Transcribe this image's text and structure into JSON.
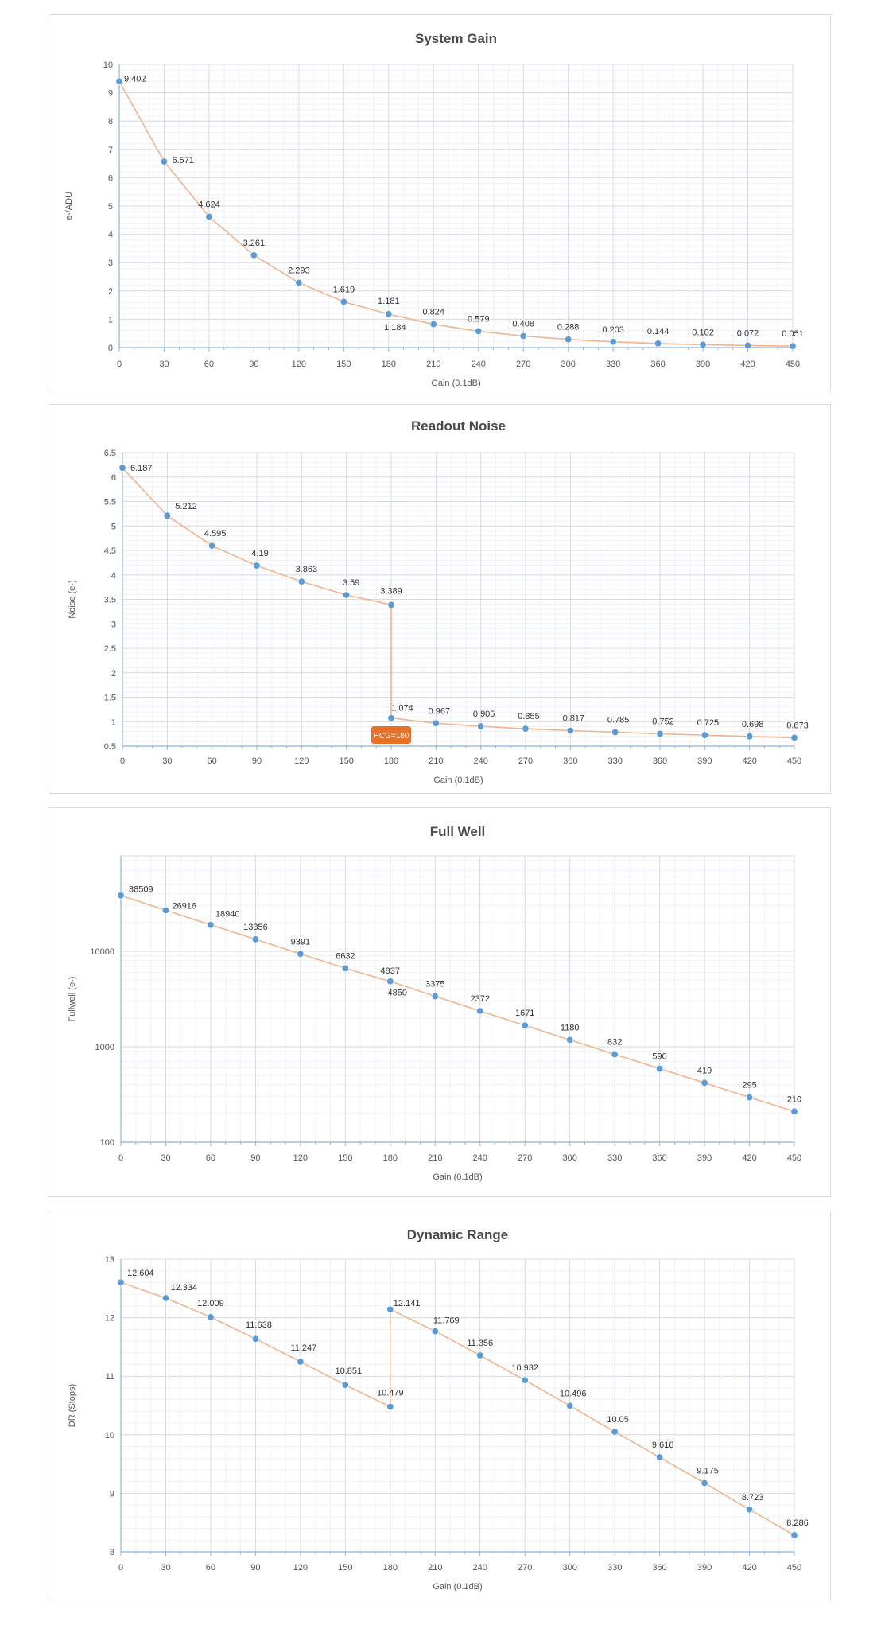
{
  "chart_data": [
    {
      "type": "line",
      "title": "System Gain",
      "xlabel": "Gain (0.1dB)",
      "ylabel": "e-/ADU",
      "x": [
        0,
        30,
        60,
        90,
        120,
        150,
        180,
        180,
        210,
        240,
        270,
        300,
        330,
        360,
        390,
        420,
        450
      ],
      "series": [
        {
          "values": [
            9.402,
            6.571,
            4.624,
            3.261,
            2.293,
            1.619,
            1.181,
            1.184,
            0.824,
            0.579,
            0.408,
            0.288,
            0.203,
            0.144,
            0.102,
            0.072,
            0.051
          ]
        }
      ],
      "labels": [
        "9.402",
        "6.571",
        "4.624",
        "3.261",
        "2.293",
        "1.619",
        "1.181",
        "1.184",
        "0.824",
        "0.579",
        "0.408",
        "0.288",
        "0.203",
        "0.144",
        "0.102",
        "0.072",
        "0.051"
      ],
      "xlim": [
        0,
        450
      ],
      "ylim": [
        0,
        10
      ],
      "x_ticks": [
        "0",
        "30",
        "60",
        "90",
        "120",
        "150",
        "180",
        "210",
        "240",
        "270",
        "300",
        "330",
        "360",
        "390",
        "420",
        "450"
      ],
      "y_ticks": [
        "0",
        "1",
        "2",
        "3",
        "4",
        "5",
        "6",
        "7",
        "8",
        "9",
        "10"
      ],
      "y_scale": "linear",
      "grid": true,
      "colors": {
        "line": "#f0b48c",
        "marker": "#5b9bd5"
      }
    },
    {
      "type": "line",
      "title": "Readout Noise",
      "xlabel": "Gain (0.1dB)",
      "ylabel": "Noise (e-)",
      "x": [
        0,
        30,
        60,
        90,
        120,
        150,
        180,
        180,
        210,
        240,
        270,
        300,
        330,
        360,
        390,
        420,
        450
      ],
      "series": [
        {
          "values": [
            6.187,
            5.212,
            4.595,
            4.19,
            3.863,
            3.59,
            3.389,
            1.074,
            0.967,
            0.905,
            0.855,
            0.817,
            0.785,
            0.752,
            0.725,
            0.698,
            0.673
          ]
        }
      ],
      "labels": [
        "6.187",
        "5.212",
        "4.595",
        "4.19",
        "3.863",
        "3.59",
        "3.389",
        "1.074",
        "0.967",
        "0.905",
        "0.855",
        "0.817",
        "0.785",
        "0.752",
        "0.725",
        "0.698",
        "0.673"
      ],
      "xlim": [
        0,
        450
      ],
      "ylim": [
        0.5,
        6.5
      ],
      "x_ticks": [
        "0",
        "30",
        "60",
        "90",
        "120",
        "150",
        "180",
        "210",
        "240",
        "270",
        "300",
        "330",
        "360",
        "390",
        "420",
        "450"
      ],
      "y_ticks": [
        "0.5",
        "1",
        "1.5",
        "2",
        "2.5",
        "3",
        "3.5",
        "4",
        "4.5",
        "5",
        "5.5",
        "6",
        "6.5"
      ],
      "y_scale": "linear",
      "grid": true,
      "annotation": {
        "text": "HCG=180",
        "x": 180,
        "color": "#e8702a"
      },
      "colors": {
        "line": "#f0b48c",
        "marker": "#5b9bd5"
      }
    },
    {
      "type": "line",
      "title": "Full Well",
      "xlabel": "Gain (0.1dB)",
      "ylabel": "Fullwell (e-)",
      "x": [
        0,
        30,
        60,
        90,
        120,
        150,
        180,
        180,
        210,
        240,
        270,
        300,
        330,
        360,
        390,
        420,
        450
      ],
      "series": [
        {
          "values": [
            38509,
            26916,
            18940,
            13356,
            9391,
            6632,
            4837,
            4850,
            3375,
            2372,
            1671,
            1180,
            832,
            590,
            419,
            295,
            210
          ]
        }
      ],
      "labels": [
        "38509",
        "26916",
        "18940",
        "13356",
        "9391",
        "6632",
        "4837",
        "4850",
        "3375",
        "2372",
        "1671",
        "1180",
        "832",
        "590",
        "419",
        "295",
        "210"
      ],
      "xlim": [
        0,
        450
      ],
      "ylim": [
        100,
        100000
      ],
      "x_ticks": [
        "0",
        "30",
        "60",
        "90",
        "120",
        "150",
        "180",
        "210",
        "240",
        "270",
        "300",
        "330",
        "360",
        "390",
        "420",
        "450"
      ],
      "y_ticks": [
        "100",
        "1000",
        "10000"
      ],
      "y_scale": "log",
      "grid": true,
      "colors": {
        "line": "#f0b48c",
        "marker": "#5b9bd5"
      }
    },
    {
      "type": "line",
      "title": "Dynamic Range",
      "xlabel": "Gain (0.1dB)",
      "ylabel": "DR (Stops)",
      "x": [
        0,
        30,
        60,
        90,
        120,
        150,
        180,
        180,
        210,
        240,
        270,
        300,
        330,
        360,
        390,
        420,
        450
      ],
      "series": [
        {
          "values": [
            12.604,
            12.334,
            12.009,
            11.638,
            11.247,
            10.851,
            10.479,
            12.141,
            11.769,
            11.356,
            10.932,
            10.496,
            10.05,
            9.616,
            9.175,
            8.723,
            8.286
          ]
        }
      ],
      "labels": [
        "12.604",
        "12.334",
        "12.009",
        "11.638",
        "11.247",
        "10.851",
        "10.479",
        "12.141",
        "11.769",
        "11.356",
        "10.932",
        "10.496",
        "10.05",
        "9.616",
        "9.175",
        "8.723",
        "8.286"
      ],
      "xlim": [
        0,
        450
      ],
      "ylim": [
        8,
        13
      ],
      "x_ticks": [
        "0",
        "30",
        "60",
        "90",
        "120",
        "150",
        "180",
        "210",
        "240",
        "270",
        "300",
        "330",
        "360",
        "390",
        "420",
        "450"
      ],
      "y_ticks": [
        "8",
        "9",
        "10",
        "11",
        "12",
        "13"
      ],
      "y_scale": "linear",
      "grid": true,
      "colors": {
        "line": "#f0b48c",
        "marker": "#5b9bd5"
      }
    }
  ]
}
